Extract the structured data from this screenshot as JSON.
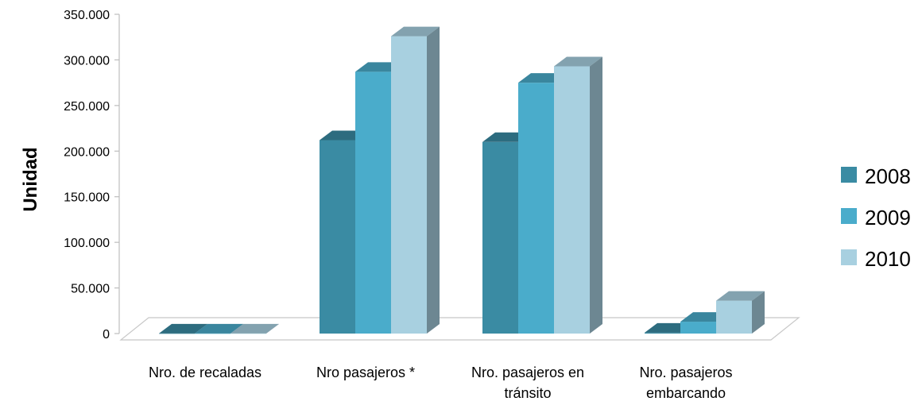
{
  "chart_data": {
    "type": "bar",
    "title": "",
    "xlabel": "",
    "ylabel": "Unidad",
    "ylim": [
      0,
      350000
    ],
    "y_ticks": [
      0,
      50000,
      100000,
      150000,
      200000,
      250000,
      300000,
      350000
    ],
    "y_tick_labels": [
      "0",
      "50.000",
      "100.000",
      "150.000",
      "200.000",
      "250.000",
      "300.000",
      "350.000"
    ],
    "categories": [
      [
        "Nro. de recaladas"
      ],
      [
        "Nro pasajeros *"
      ],
      [
        "Nro. pasajeros en",
        "tránsito"
      ],
      [
        "Nro. pasajeros",
        "embarcando"
      ]
    ],
    "series": [
      {
        "name": "2008",
        "values": [
          150,
          212000,
          210000,
          1000
        ],
        "color": "#3a8ba3"
      },
      {
        "name": "2009",
        "values": [
          150,
          287000,
          275000,
          13000
        ],
        "color": "#4aaccb"
      },
      {
        "name": "2010",
        "values": [
          150,
          326000,
          293000,
          36000
        ],
        "color": "#a8d0e0"
      }
    ],
    "legend_position": "right",
    "style": "3d-clustered-column"
  }
}
